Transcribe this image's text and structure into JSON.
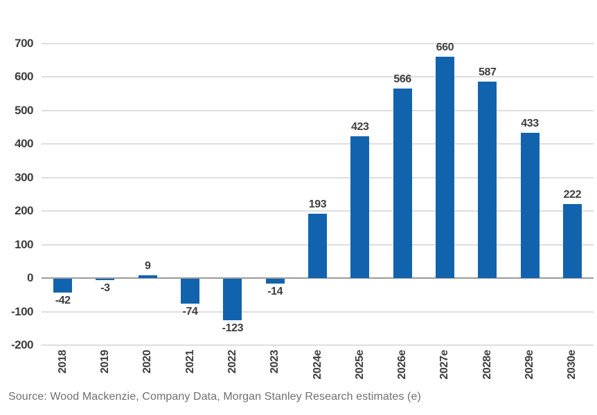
{
  "chart_data": {
    "type": "bar",
    "categories": [
      "2018",
      "2019",
      "2020",
      "2021",
      "2022",
      "2023",
      "2024e",
      "2025e",
      "2026e",
      "2027e",
      "2028e",
      "2029e",
      "2030e"
    ],
    "values": [
      -42,
      -3,
      9,
      -74,
      -123,
      -14,
      193,
      423,
      566,
      660,
      587,
      433,
      222
    ],
    "title": "",
    "xlabel": "",
    "ylabel": "",
    "ylim": [
      -200,
      700
    ],
    "ytick_step": 100,
    "grid": true,
    "legend": "none",
    "data_labels": true,
    "bar_color": "#1263ae",
    "gridline_color": "#dedede",
    "zero_line_color": "#9a9a9a",
    "label_color": "#3d3d3d",
    "source_text_color": "#6f6f6f"
  },
  "footer": {
    "source": "Source: Wood Mackenzie, Company Data, Morgan Stanley Research estimates (e)"
  }
}
